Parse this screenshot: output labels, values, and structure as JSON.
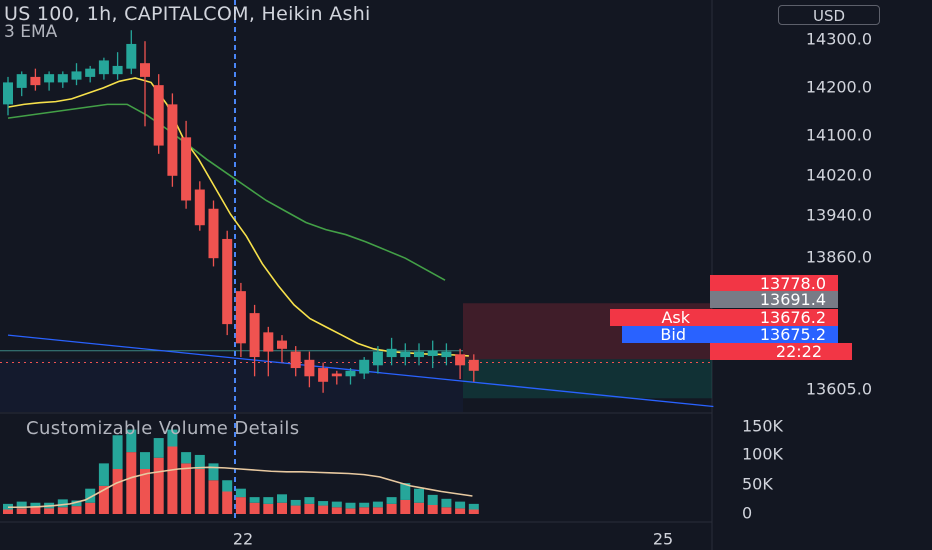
{
  "header": {
    "title": "US 100, 1h, CAPITALCOM, Heikin Ashi",
    "indicator": "3 EMA",
    "currency": "USD"
  },
  "price_axis_labels": [
    "14300.0",
    "14200.0",
    "14100.0",
    "14020.0",
    "13940.0",
    "13860.0",
    "13605.0"
  ],
  "price_tags": {
    "top": "13778.0",
    "mid": "13691.4",
    "ask_label": "Ask",
    "ask_value": "13676.2",
    "bid_label": "Bid",
    "bid_value": "13675.2",
    "countdown": "22:22"
  },
  "volume_panel": {
    "title": "Customizable Volume Details",
    "axis_labels": [
      "150K",
      "100K",
      "50K",
      "0"
    ]
  },
  "time_axis_labels": [
    "22",
    "25"
  ],
  "colors": {
    "background": "#131722",
    "up": "#26a69a",
    "down": "#ef5350",
    "ema_fast": "#f7e14b",
    "ema_slow": "#43a047",
    "trendline": "#2962ff",
    "volume_ma": "#e8c9a0",
    "ask_tag": "#f23645",
    "bid_tag": "#2962ff",
    "mid_tag": "#787b86"
  },
  "chart_data": {
    "type": "candlestick",
    "style": "Heikin Ashi",
    "symbol": "US 100",
    "interval": "1h",
    "ylim": [
      13580,
      14330
    ],
    "candles": [
      {
        "o": 14140,
        "h": 14190,
        "l": 14120,
        "c": 14180
      },
      {
        "o": 14170,
        "h": 14200,
        "l": 14155,
        "c": 14195
      },
      {
        "o": 14190,
        "h": 14205,
        "l": 14165,
        "c": 14175
      },
      {
        "o": 14180,
        "h": 14200,
        "l": 14165,
        "c": 14195
      },
      {
        "o": 14180,
        "h": 14200,
        "l": 14170,
        "c": 14195
      },
      {
        "o": 14185,
        "h": 14215,
        "l": 14175,
        "c": 14200
      },
      {
        "o": 14190,
        "h": 14210,
        "l": 14180,
        "c": 14205
      },
      {
        "o": 14195,
        "h": 14225,
        "l": 14185,
        "c": 14220
      },
      {
        "o": 14195,
        "h": 14235,
        "l": 14185,
        "c": 14210
      },
      {
        "o": 14205,
        "h": 14275,
        "l": 14195,
        "c": 14250
      },
      {
        "o": 14215,
        "h": 14255,
        "l": 14100,
        "c": 14190
      },
      {
        "o": 14175,
        "h": 14195,
        "l": 14050,
        "c": 14065
      },
      {
        "o": 14140,
        "h": 14160,
        "l": 13990,
        "c": 14010
      },
      {
        "o": 14080,
        "h": 14110,
        "l": 13950,
        "c": 13965
      },
      {
        "o": 13985,
        "h": 14000,
        "l": 13910,
        "c": 13920
      },
      {
        "o": 13950,
        "h": 13965,
        "l": 13845,
        "c": 13860
      },
      {
        "o": 13895,
        "h": 13910,
        "l": 13720,
        "c": 13740
      },
      {
        "o": 13800,
        "h": 13815,
        "l": 13680,
        "c": 13705
      },
      {
        "o": 13760,
        "h": 13775,
        "l": 13645,
        "c": 13680
      },
      {
        "o": 13725,
        "h": 13735,
        "l": 13645,
        "c": 13690
      },
      {
        "o": 13710,
        "h": 13720,
        "l": 13670,
        "c": 13695
      },
      {
        "o": 13690,
        "h": 13700,
        "l": 13645,
        "c": 13660
      },
      {
        "o": 13675,
        "h": 13690,
        "l": 13625,
        "c": 13645
      },
      {
        "o": 13660,
        "h": 13670,
        "l": 13615,
        "c": 13635
      },
      {
        "o": 13650,
        "h": 13655,
        "l": 13630,
        "c": 13645
      },
      {
        "o": 13645,
        "h": 13660,
        "l": 13630,
        "c": 13655
      },
      {
        "o": 13650,
        "h": 13680,
        "l": 13640,
        "c": 13675
      },
      {
        "o": 13665,
        "h": 13700,
        "l": 13650,
        "c": 13690
      },
      {
        "o": 13680,
        "h": 13715,
        "l": 13665,
        "c": 13695
      },
      {
        "o": 13680,
        "h": 13705,
        "l": 13665,
        "c": 13690
      },
      {
        "o": 13680,
        "h": 13705,
        "l": 13665,
        "c": 13690
      },
      {
        "o": 13682,
        "h": 13710,
        "l": 13660,
        "c": 13692
      },
      {
        "o": 13680,
        "h": 13705,
        "l": 13665,
        "c": 13690
      },
      {
        "o": 13685,
        "h": 13695,
        "l": 13640,
        "c": 13665
      },
      {
        "o": 13675,
        "h": 13685,
        "l": 13635,
        "c": 13655
      }
    ],
    "ema_fast": [
      14135,
      14140,
      14143,
      14145,
      14150,
      14160,
      14170,
      14182,
      14188,
      14180,
      14140,
      14080,
      14040,
      13990,
      13940,
      13900,
      13850,
      13810,
      13775,
      13750,
      13735,
      13720,
      13705,
      13695,
      13690,
      13688,
      13686,
      13685,
      13684,
      13682
    ],
    "ema_fast_x": [
      0,
      1,
      2,
      3,
      4,
      5,
      6,
      7,
      8,
      9,
      10,
      11,
      12,
      13,
      14,
      15,
      16,
      17,
      18,
      19,
      20,
      21,
      22,
      23,
      24,
      25,
      26,
      27,
      28,
      29
    ],
    "ema_slow": [
      14115,
      14120,
      14125,
      14130,
      14135,
      14140,
      14140,
      14120,
      14095,
      14068,
      14040,
      14015,
      13990,
      13965,
      13945,
      13925,
      13912,
      13903,
      13890,
      13875,
      13860,
      13840,
      13820
    ],
    "trendline": {
      "from": [
        0,
        13720
      ],
      "to": [
        42,
        13590
      ]
    },
    "volume": [
      {
        "up": 10,
        "down": 8
      },
      {
        "up": 12,
        "down": 10
      },
      {
        "up": 8,
        "down": 12
      },
      {
        "up": 10,
        "down": 10
      },
      {
        "up": 14,
        "down": 12
      },
      {
        "up": 10,
        "down": 14
      },
      {
        "up": 25,
        "down": 20
      },
      {
        "up": 40,
        "down": 50
      },
      {
        "up": 60,
        "down": 80
      },
      {
        "up": 40,
        "down": 110
      },
      {
        "up": 30,
        "down": 80
      },
      {
        "up": 35,
        "down": 100
      },
      {
        "up": 30,
        "down": 120
      },
      {
        "up": 20,
        "down": 90
      },
      {
        "up": 25,
        "down": 80
      },
      {
        "up": 30,
        "down": 60
      },
      {
        "up": 20,
        "down": 40
      },
      {
        "up": 15,
        "down": 30
      },
      {
        "up": 10,
        "down": 20
      },
      {
        "up": 12,
        "down": 18
      },
      {
        "up": 15,
        "down": 20
      },
      {
        "up": 10,
        "down": 15
      },
      {
        "up": 12,
        "down": 18
      },
      {
        "up": 8,
        "down": 15
      },
      {
        "up": 10,
        "down": 12
      },
      {
        "up": 10,
        "down": 10
      },
      {
        "up": 8,
        "down": 12
      },
      {
        "up": 10,
        "down": 12
      },
      {
        "up": 12,
        "down": 18
      },
      {
        "up": 30,
        "down": 25
      },
      {
        "up": 25,
        "down": 20
      },
      {
        "up": 18,
        "down": 16
      },
      {
        "up": 15,
        "down": 12
      },
      {
        "up": 12,
        "down": 10
      },
      {
        "up": 10,
        "down": 8
      }
    ],
    "volume_ma": [
      12,
      12,
      13,
      15,
      18,
      25,
      40,
      55,
      65,
      72,
      76,
      80,
      82,
      83,
      82,
      80,
      78,
      76,
      75,
      75,
      74,
      73,
      72,
      70,
      66,
      58,
      50,
      45,
      40,
      36,
      32
    ]
  }
}
